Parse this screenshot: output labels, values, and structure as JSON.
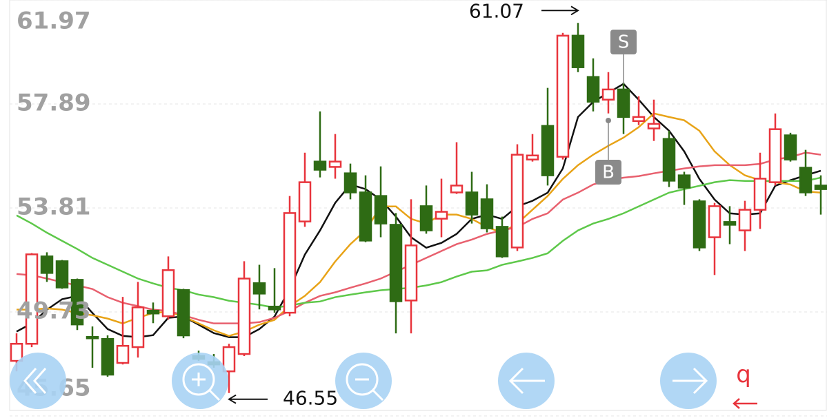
{
  "chart_data": {
    "type": "candlestick",
    "ylim": [
      45.65,
      61.97
    ],
    "yticks": [
      61.97,
      57.89,
      53.81,
      49.73,
      45.65
    ],
    "grid": true,
    "up_color": "#e8343c",
    "down_color": "#2e6b14",
    "candles": {
      "open": [
        47.81,
        48.48,
        51.91,
        51.72,
        50.99,
        48.75,
        48.67,
        47.73,
        48.35,
        49.78,
        49.56,
        50.59,
        48.0,
        47.76,
        47.4,
        48.08,
        50.86,
        49.94,
        49.7,
        53.28,
        55.63,
        55.42,
        55.17,
        54.42,
        54.28,
        53.15,
        50.18,
        53.88,
        53.39,
        54.42,
        54.42,
        54.15,
        53.07,
        52.26,
        55.71,
        57.03,
        55.82,
        60.57,
        58.95,
        58.06,
        58.46,
        57.22,
        56.93,
        56.52,
        55.09,
        54.07,
        52.66,
        53.26,
        52.93,
        53.74,
        54.82,
        56.66,
        55.39,
        54.69
      ],
      "high": [
        48.89,
        52.04,
        52.07,
        51.77,
        51.04,
        49.16,
        48.81,
        50.32,
        50.91,
        50.1,
        51.91,
        50.64,
        48.21,
        48.08,
        48.48,
        51.72,
        51.58,
        51.45,
        54.28,
        55.98,
        57.6,
        56.71,
        55.55,
        55.09,
        55.44,
        53.61,
        54.15,
        54.69,
        54.96,
        56.39,
        55.23,
        54.74,
        53.47,
        56.31,
        56.71,
        58.52,
        60.68,
        61.07,
        59.68,
        59.14,
        58.73,
        58.19,
        58.06,
        56.84,
        55.23,
        54.15,
        54.01,
        53.88,
        54.09,
        55.98,
        57.52,
        56.76,
        56.09,
        55.09
      ],
      "low": [
        47.4,
        48.35,
        50.91,
        50.64,
        49.02,
        47.54,
        47.19,
        47.67,
        47.94,
        49.29,
        49.43,
        48.7,
        47.81,
        47.54,
        46.55,
        48.0,
        49.83,
        49.7,
        49.56,
        53.07,
        55.01,
        54.96,
        54.15,
        52.47,
        52.66,
        48.89,
        48.89,
        52.8,
        52.66,
        54.36,
        53.2,
        52.85,
        51.85,
        52.12,
        55.63,
        54.69,
        55.71,
        59.14,
        57.6,
        57.52,
        56.71,
        57.06,
        56.44,
        54.63,
        53.93,
        52.12,
        51.18,
        52.39,
        52.12,
        52.99,
        54.69,
        55.63,
        54.28,
        53.55
      ],
      "close": [
        48.48,
        51.99,
        51.26,
        50.69,
        49.24,
        48.7,
        47.27,
        48.4,
        49.91,
        49.67,
        51.37,
        48.81,
        47.89,
        47.67,
        48.35,
        51.04,
        50.45,
        49.83,
        53.61,
        54.82,
        55.31,
        55.63,
        54.42,
        52.53,
        53.2,
        50.15,
        52.34,
        52.93,
        53.66,
        54.69,
        53.55,
        53.01,
        51.91,
        55.9,
        55.87,
        55.09,
        60.57,
        59.33,
        57.98,
        58.46,
        57.38,
        57.38,
        57.11,
        54.88,
        54.61,
        52.26,
        53.88,
        53.15,
        53.74,
        54.96,
        56.9,
        55.71,
        54.42,
        54.55
      ]
    },
    "series": [
      {
        "color": "#111111",
        "values": [
          48.96,
          49.28,
          49.82,
          50.23,
          50.36,
          49.69,
          49.06,
          48.79,
          48.74,
          48.82,
          49.5,
          49.55,
          49.23,
          48.9,
          48.74,
          48.74,
          49.06,
          49.55,
          50.63,
          51.98,
          52.93,
          54.01,
          54.73,
          54.55,
          54.14,
          53.47,
          52.66,
          52.25,
          52.44,
          52.79,
          53.38,
          53.55,
          53.38,
          53.87,
          54.09,
          54.41,
          55.36,
          57.38,
          57.97,
          58.33,
          58.68,
          58.06,
          57.38,
          56.84,
          56.03,
          54.95,
          54.14,
          53.6,
          53.55,
          53.6,
          54.68,
          54.9,
          55.09,
          55.27
        ]
      },
      {
        "color": "#e8a317",
        "values": [
          49.82,
          49.82,
          49.87,
          49.82,
          49.69,
          49.6,
          49.47,
          49.28,
          49.5,
          49.69,
          49.74,
          49.55,
          49.28,
          49.01,
          48.79,
          48.96,
          49.23,
          49.42,
          49.96,
          50.36,
          50.9,
          51.71,
          52.39,
          52.93,
          53.87,
          53.87,
          53.38,
          53.2,
          53.55,
          53.55,
          53.38,
          53.06,
          52.84,
          53.2,
          53.74,
          54.28,
          54.95,
          55.49,
          55.9,
          56.25,
          56.57,
          56.98,
          57.52,
          57.38,
          57.25,
          56.84,
          56.03,
          55.49,
          55.09,
          54.9,
          54.82,
          54.73,
          54.46,
          54.41
        ]
      },
      {
        "color": "#e8606e",
        "values": [
          51.22,
          51.17,
          51.04,
          50.9,
          50.77,
          50.63,
          50.31,
          50.09,
          49.96,
          49.82,
          49.77,
          49.6,
          49.42,
          49.28,
          49.28,
          49.28,
          49.33,
          49.5,
          49.77,
          50.09,
          50.36,
          50.5,
          50.68,
          50.85,
          51.04,
          51.31,
          51.58,
          51.85,
          52.12,
          52.39,
          52.57,
          52.79,
          52.93,
          53.06,
          53.38,
          53.6,
          54.14,
          54.41,
          54.73,
          54.9,
          55.0,
          55.06,
          55.17,
          55.27,
          55.36,
          55.44,
          55.49,
          55.49,
          55.49,
          55.54,
          55.71,
          55.81,
          55.98,
          55.9
        ]
      },
      {
        "color": "#5ec84a",
        "values": [
          53.52,
          53.2,
          52.84,
          52.52,
          52.2,
          51.85,
          51.58,
          51.31,
          51.04,
          50.85,
          50.68,
          50.58,
          50.41,
          50.31,
          50.17,
          50.09,
          50.01,
          49.9,
          49.98,
          50.09,
          50.14,
          50.31,
          50.41,
          50.5,
          50.58,
          50.63,
          50.68,
          50.77,
          50.9,
          51.12,
          51.31,
          51.36,
          51.58,
          51.71,
          51.85,
          52.03,
          52.52,
          52.93,
          53.2,
          53.38,
          53.6,
          53.87,
          54.14,
          54.41,
          54.55,
          54.68,
          54.82,
          54.9,
          54.87,
          54.87,
          54.87,
          54.87,
          54.87,
          55.0
        ]
      }
    ],
    "high_marker": 61.07,
    "low_marker": 46.55,
    "signals": [
      {
        "text": "S",
        "index": 40
      },
      {
        "text": "B",
        "index": 39
      }
    ],
    "footer_mark": "q"
  }
}
